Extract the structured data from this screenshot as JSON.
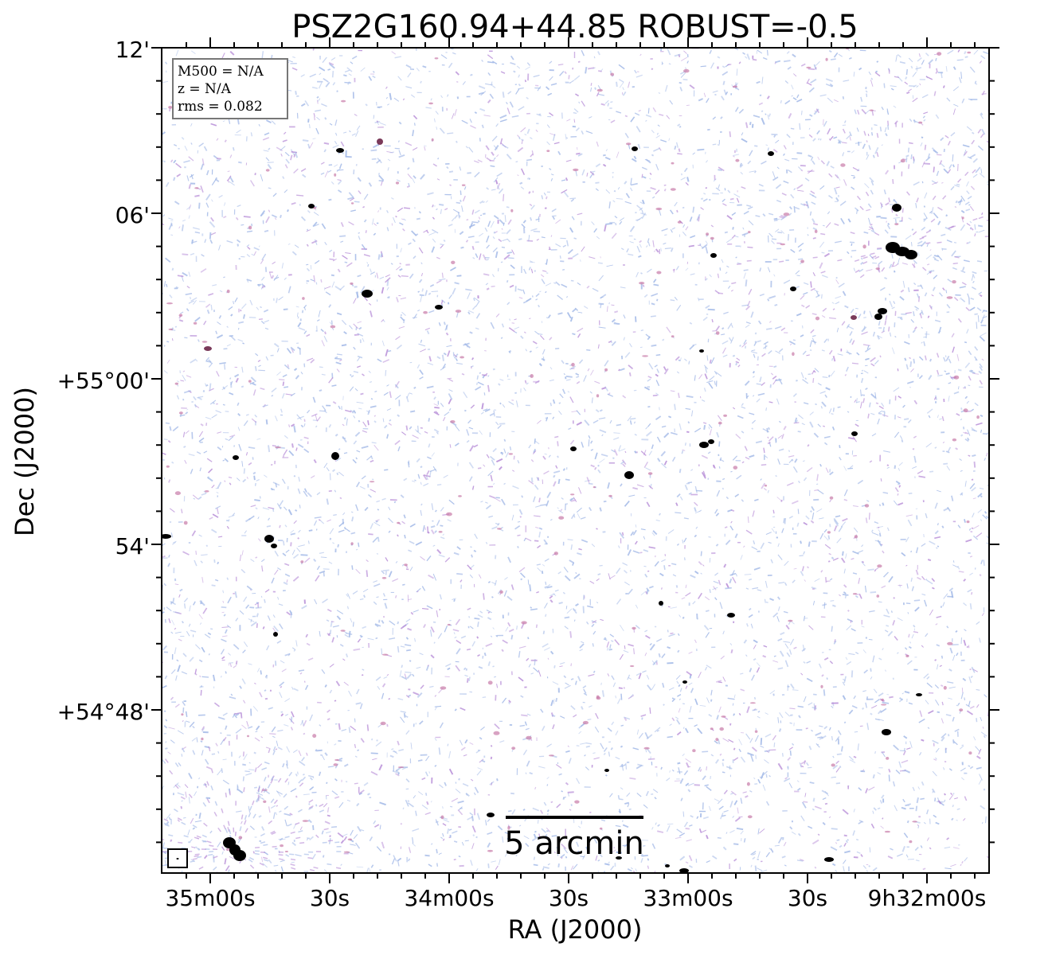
{
  "title": "PSZ2G160.94+44.85 ROBUST=-0.5",
  "axes": {
    "xlabel": "RA (J2000)",
    "ylabel": "Dec (J2000)",
    "xticks": [
      "35m00s",
      "30s",
      "34m00s",
      "30s",
      "33m00s",
      "30s",
      "9h32m00s"
    ],
    "yticks": [
      "12'",
      "06'",
      "+55°00'",
      "54'",
      "+54°48'"
    ]
  },
  "info_box": {
    "lines": [
      "M500 = N/A",
      "z = N/A",
      "rms = 0.082"
    ]
  },
  "scalebar": {
    "label": "5 arcmin"
  },
  "beam": {
    "label": "beam ellipse"
  },
  "colors": {
    "noise_blue": "#9fb6e6",
    "noise_purple": "#b58ad6",
    "noise_pink": "#c77aa8",
    "source": "#000000",
    "frame": "#000000"
  }
}
